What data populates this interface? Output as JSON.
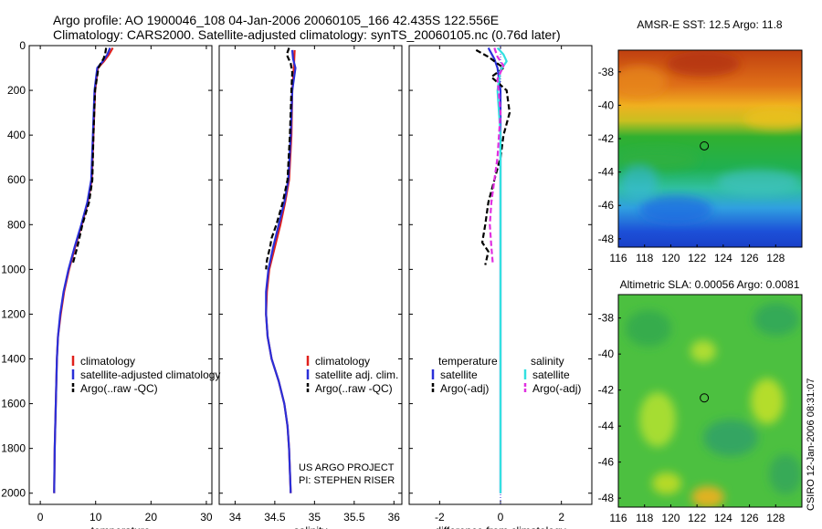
{
  "header": {
    "line1": "Argo profile: AO 1900046_108 04-Jan-2006 20060105_166 42.435S 122.556E",
    "line2": "Climatology: CARS2000. Satellite-adjusted climatology: synTS_20060105.nc (0.76d later)"
  },
  "side_label": "CSIRO 12-Jan-2006 08:31:07",
  "credit": {
    "line1": "US ARGO PROJECT",
    "line2": "PI: STEPHEN RISER"
  },
  "colors": {
    "climatology": "#e0201c",
    "satellite": "#2a2fd8",
    "argo": "#000000",
    "salinity_satellite": "#33e0e0",
    "salinity_argo": "#e030e0"
  },
  "chart_data": [
    {
      "type": "line",
      "name": "temperature-panel",
      "xlabel": "temperature",
      "ylabel": "",
      "xlim": [
        -2,
        31
      ],
      "ylim": [
        2050,
        0
      ],
      "xticks": [
        0,
        10,
        20,
        30
      ],
      "yticks": [
        0,
        200,
        400,
        600,
        800,
        1000,
        1200,
        1400,
        1600,
        1800,
        2000
      ],
      "legend": [
        "climatology",
        "satellite-adjusted climatology",
        "Argo(..raw -QC)"
      ],
      "series": [
        {
          "name": "climatology",
          "style": "solid",
          "color": "#e0201c",
          "points": [
            [
              13.1,
              10
            ],
            [
              12.4,
              40
            ],
            [
              11.5,
              70
            ],
            [
              10.4,
              100
            ],
            [
              9.9,
              200
            ],
            [
              9.6,
              400
            ],
            [
              9.3,
              600
            ],
            [
              8.6,
              700
            ],
            [
              7.5,
              800
            ],
            [
              6.3,
              900
            ],
            [
              5.2,
              1000
            ],
            [
              4.3,
              1100
            ],
            [
              3.7,
              1200
            ],
            [
              3.2,
              1300
            ],
            [
              3.0,
              1400
            ],
            [
              2.8,
              1600
            ],
            [
              2.6,
              1800
            ],
            [
              2.5,
              2000
            ]
          ]
        },
        {
          "name": "satellite-adjusted climatology",
          "style": "solid",
          "color": "#2a2fd8",
          "points": [
            [
              12.6,
              10
            ],
            [
              12.1,
              40
            ],
            [
              11.3,
              70
            ],
            [
              10.3,
              100
            ],
            [
              9.8,
              200
            ],
            [
              9.5,
              400
            ],
            [
              9.2,
              600
            ],
            [
              8.5,
              700
            ],
            [
              7.4,
              800
            ],
            [
              6.2,
              900
            ],
            [
              5.1,
              1000
            ],
            [
              4.2,
              1100
            ],
            [
              3.6,
              1200
            ],
            [
              3.2,
              1300
            ],
            [
              3.0,
              1400
            ],
            [
              2.8,
              1600
            ],
            [
              2.6,
              1800
            ],
            [
              2.5,
              2000
            ]
          ]
        },
        {
          "name": "Argo(..raw -QC)",
          "style": "dashed",
          "color": "#000000",
          "points": [
            [
              11.9,
              10
            ],
            [
              11.7,
              40
            ],
            [
              11.4,
              60
            ],
            [
              10.9,
              80
            ],
            [
              10.5,
              100
            ],
            [
              10.2,
              150
            ],
            [
              9.9,
              200
            ],
            [
              9.6,
              400
            ],
            [
              9.4,
              600
            ],
            [
              8.8,
              700
            ],
            [
              7.6,
              800
            ],
            [
              6.7,
              900
            ],
            [
              5.8,
              980
            ]
          ]
        }
      ]
    },
    {
      "type": "line",
      "name": "salinity-panel",
      "xlabel": "salinity",
      "ylabel": "",
      "xlim": [
        33.8,
        36.1
      ],
      "ylim": [
        2050,
        0
      ],
      "xticks": [
        34,
        34.5,
        35,
        35.5,
        36
      ],
      "yticks": [
        0,
        200,
        400,
        600,
        800,
        1000,
        1200,
        1400,
        1600,
        1800,
        2000
      ],
      "legend": [
        "climatology",
        "satellite adj. clim.",
        "Argo(..raw -QC)"
      ],
      "series": [
        {
          "name": "climatology",
          "style": "solid",
          "color": "#e0201c",
          "points": [
            [
              34.75,
              20
            ],
            [
              34.74,
              100
            ],
            [
              34.72,
              200
            ],
            [
              34.71,
              400
            ],
            [
              34.68,
              600
            ],
            [
              34.63,
              700
            ],
            [
              34.57,
              800
            ],
            [
              34.5,
              900
            ],
            [
              34.43,
              1000
            ],
            [
              34.4,
              1100
            ],
            [
              34.39,
              1200
            ],
            [
              34.41,
              1300
            ],
            [
              34.46,
              1400
            ],
            [
              34.55,
              1500
            ],
            [
              34.62,
              1600
            ],
            [
              34.66,
              1700
            ],
            [
              34.68,
              1800
            ],
            [
              34.69,
              1900
            ],
            [
              34.7,
              2000
            ]
          ]
        },
        {
          "name": "satellite adj. clim.",
          "style": "solid",
          "color": "#2a2fd8",
          "points": [
            [
              34.72,
              20
            ],
            [
              34.73,
              60
            ],
            [
              34.76,
              100
            ],
            [
              34.72,
              200
            ],
            [
              34.7,
              400
            ],
            [
              34.67,
              600
            ],
            [
              34.62,
              700
            ],
            [
              34.55,
              800
            ],
            [
              34.48,
              900
            ],
            [
              34.42,
              1000
            ],
            [
              34.39,
              1100
            ],
            [
              34.39,
              1200
            ],
            [
              34.41,
              1300
            ],
            [
              34.46,
              1400
            ],
            [
              34.55,
              1500
            ],
            [
              34.62,
              1600
            ],
            [
              34.66,
              1700
            ],
            [
              34.68,
              1800
            ],
            [
              34.69,
              1900
            ],
            [
              34.7,
              2000
            ]
          ]
        },
        {
          "name": "Argo(..raw -QC)",
          "style": "dashed",
          "color": "#000000",
          "points": [
            [
              34.68,
              10
            ],
            [
              34.65,
              40
            ],
            [
              34.7,
              80
            ],
            [
              34.72,
              120
            ],
            [
              34.71,
              200
            ],
            [
              34.69,
              400
            ],
            [
              34.66,
              600
            ],
            [
              34.6,
              700
            ],
            [
              34.52,
              800
            ],
            [
              34.46,
              860
            ],
            [
              34.44,
              900
            ],
            [
              34.4,
              960
            ],
            [
              34.39,
              1000
            ]
          ]
        }
      ]
    },
    {
      "type": "line",
      "name": "difference-panel",
      "xlabel": "difference from climatology",
      "ylabel": "",
      "xlim": [
        -3,
        3
      ],
      "ylim": [
        2050,
        0
      ],
      "xticks": [
        -2,
        0,
        2
      ],
      "yticks": [
        0,
        200,
        400,
        600,
        800,
        1000,
        1200,
        1400,
        1600,
        1800,
        2000
      ],
      "legend": [
        "temperature",
        "satellite",
        "Argo(-adj)",
        "salinity",
        "satellite",
        "Argo(-adj)"
      ],
      "series": [
        {
          "name": "temperature satellite",
          "style": "solid",
          "color": "#2a2fd8",
          "points": [
            [
              -0.4,
              10
            ],
            [
              -0.2,
              60
            ],
            [
              -0.1,
              100
            ],
            [
              0,
              200
            ],
            [
              0,
              500
            ],
            [
              0,
              1000
            ],
            [
              0,
              1500
            ],
            [
              0,
              2000
            ]
          ]
        },
        {
          "name": "temperature Argo(-adj)",
          "style": "dashed",
          "color": "#000000",
          "points": [
            [
              -0.8,
              20
            ],
            [
              -0.4,
              50
            ],
            [
              0.1,
              100
            ],
            [
              -0.3,
              140
            ],
            [
              0.2,
              200
            ],
            [
              0.3,
              300
            ],
            [
              0.1,
              400
            ],
            [
              0,
              500
            ],
            [
              -0.2,
              600
            ],
            [
              -0.4,
              700
            ],
            [
              -0.5,
              800
            ],
            [
              -0.6,
              880
            ],
            [
              -0.4,
              920
            ],
            [
              -0.5,
              980
            ]
          ]
        },
        {
          "name": "salinity satellite",
          "style": "solid",
          "color": "#33e0e0",
          "points": [
            [
              -0.1,
              10
            ],
            [
              0.1,
              40
            ],
            [
              0.2,
              70
            ],
            [
              0,
              110
            ],
            [
              -0.1,
              200
            ],
            [
              0,
              400
            ],
            [
              0,
              800
            ],
            [
              0,
              1200
            ],
            [
              0,
              1600
            ],
            [
              0,
              2000
            ]
          ]
        },
        {
          "name": "salinity Argo(-adj)",
          "style": "dashed",
          "color": "#e030e0",
          "points": [
            [
              -0.2,
              10
            ],
            [
              -0.1,
              50
            ],
            [
              0.1,
              90
            ],
            [
              -0.1,
              150
            ],
            [
              0,
              300
            ],
            [
              -0.1,
              500
            ],
            [
              -0.2,
              600
            ],
            [
              -0.3,
              700
            ],
            [
              -0.35,
              800
            ],
            [
              -0.3,
              900
            ],
            [
              -0.25,
              980
            ]
          ]
        }
      ]
    },
    {
      "type": "heatmap",
      "name": "sst-map",
      "title": "AMSR-E SST: 12.5 Argo: 11.8",
      "xlim": [
        116,
        130
      ],
      "ylim": [
        -48.5,
        -36.7
      ],
      "xticks": [
        116,
        118,
        120,
        122,
        124,
        126,
        128
      ],
      "yticks": [
        -38,
        -40,
        -42,
        -44,
        -46,
        -48
      ],
      "marker": [
        122.556,
        -42.435
      ]
    },
    {
      "type": "heatmap",
      "name": "sla-map",
      "title": "Altimetric SLA: 0.00056 Argo: 0.0081",
      "xlim": [
        116,
        130
      ],
      "ylim": [
        -48.5,
        -36.7
      ],
      "xticks": [
        116,
        118,
        120,
        122,
        124,
        126,
        128
      ],
      "yticks": [
        -38,
        -40,
        -42,
        -44,
        -46,
        -48
      ],
      "marker": [
        122.556,
        -42.435
      ]
    }
  ]
}
